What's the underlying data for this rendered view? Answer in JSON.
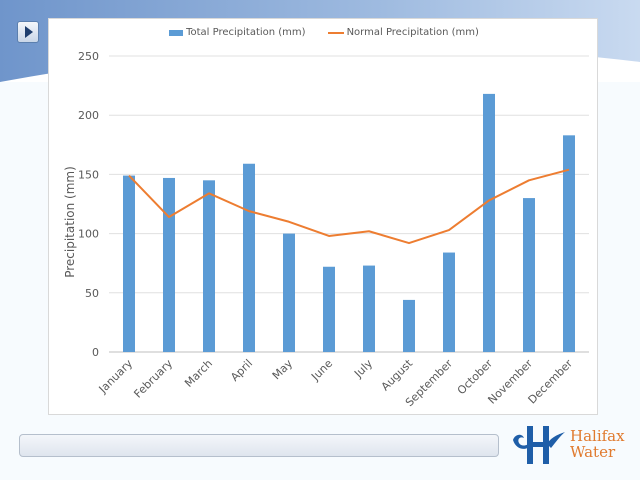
{
  "controls": {
    "play_icon": "play-triangle-icon"
  },
  "colors": {
    "bar": "#5b9bd5",
    "line": "#ed7d31",
    "background_wave": "#7fa3d2",
    "logo_blue": "#1f5ea8",
    "logo_orange": "#e07a2e"
  },
  "logo": {
    "line1": "Halifax",
    "line2": "Water"
  },
  "chart_data": {
    "type": "bar",
    "title": "",
    "xlabel": "",
    "ylabel": "Precipitation (mm)",
    "ylim": [
      0,
      250
    ],
    "yticks": [
      "0",
      "50",
      "100",
      "150",
      "200",
      "250"
    ],
    "grid": true,
    "legend_position": "top",
    "categories": [
      "January",
      "February",
      "March",
      "April",
      "May",
      "June",
      "July",
      "August",
      "September",
      "October",
      "November",
      "December"
    ],
    "series": [
      {
        "name": "Total Precipitation (mm)",
        "type": "bar",
        "values": [
          149,
          147,
          145,
          159,
          100,
          72,
          73,
          44,
          84,
          218,
          130,
          183
        ]
      },
      {
        "name": "Normal Precipitation (mm)",
        "type": "line",
        "values": [
          149,
          114,
          134,
          119,
          110,
          98,
          102,
          92,
          103,
          128,
          145,
          154
        ]
      }
    ]
  }
}
